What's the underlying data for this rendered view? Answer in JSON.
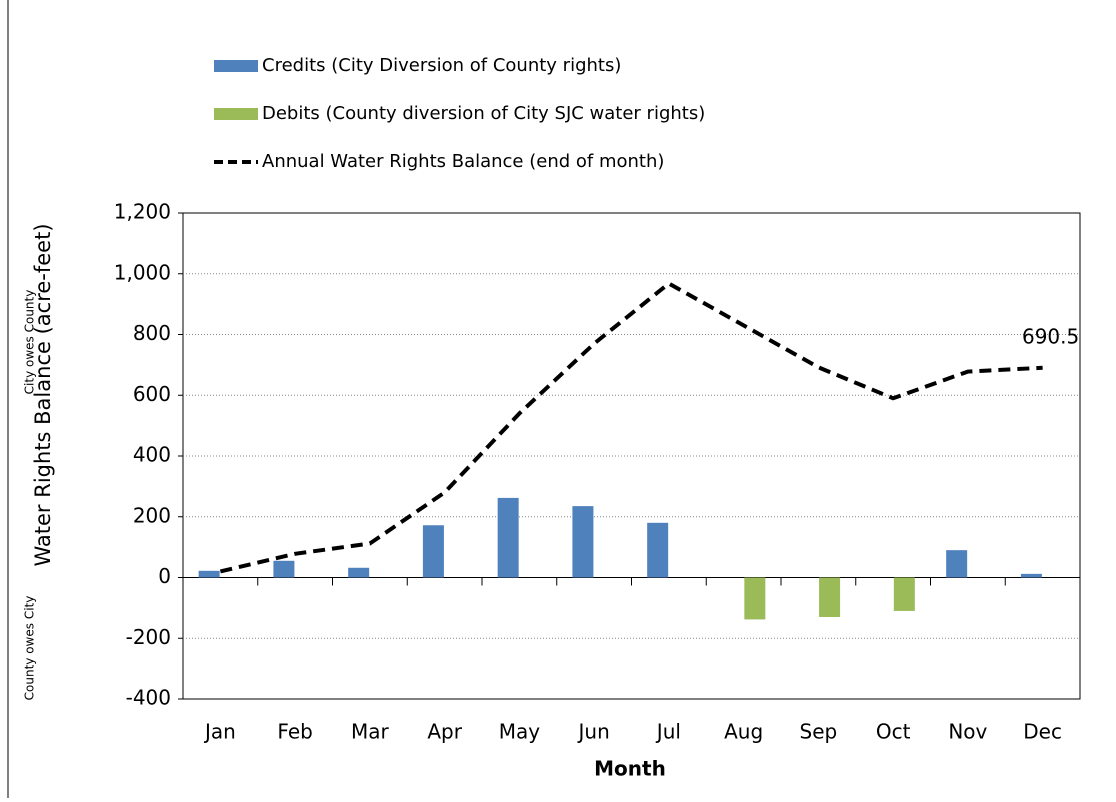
{
  "chart_data": {
    "type": "bar",
    "y_label": "Water Rights Balance (acre-feet)",
    "x_label": "Month",
    "annotations": [
      "City owes County",
      "County owes City"
    ],
    "categories": [
      "Jan",
      "Feb",
      "Mar",
      "Apr",
      "May",
      "Jun",
      "Jul",
      "Aug",
      "Sep",
      "Oct",
      "Nov",
      "Dec"
    ],
    "series": [
      {
        "name": "Credits (City Diversion of County rights)",
        "type": "bar",
        "color": "#4f81bd",
        "values": [
          22,
          55,
          32,
          172,
          262,
          235,
          180,
          null,
          null,
          null,
          90,
          12
        ]
      },
      {
        "name": "Debits (County diversion of City SJC water rights)",
        "type": "bar",
        "color": "#9bbb59",
        "values": [
          null,
          null,
          null,
          null,
          null,
          null,
          null,
          -138,
          -130,
          -110,
          null,
          null
        ]
      },
      {
        "name": "Annual Water Rights Balance (end of month)",
        "type": "line",
        "color": "#000000",
        "values": [
          20,
          78,
          112,
          280,
          540,
          770,
          968,
          830,
          692,
          590,
          678,
          690.5
        ],
        "value_labels": [
          null,
          null,
          null,
          null,
          null,
          null,
          null,
          null,
          null,
          null,
          null,
          "690.5"
        ]
      }
    ],
    "ylim": [
      -400,
      1200
    ],
    "yticks": [
      {
        "value": -400,
        "label": "-400"
      },
      -200,
      0,
      200,
      400,
      600,
      800,
      {
        "value": 1000,
        "label": "1,000"
      },
      {
        "value": 1200,
        "label": "1,200"
      }
    ],
    "grid": true,
    "legend": "top"
  }
}
